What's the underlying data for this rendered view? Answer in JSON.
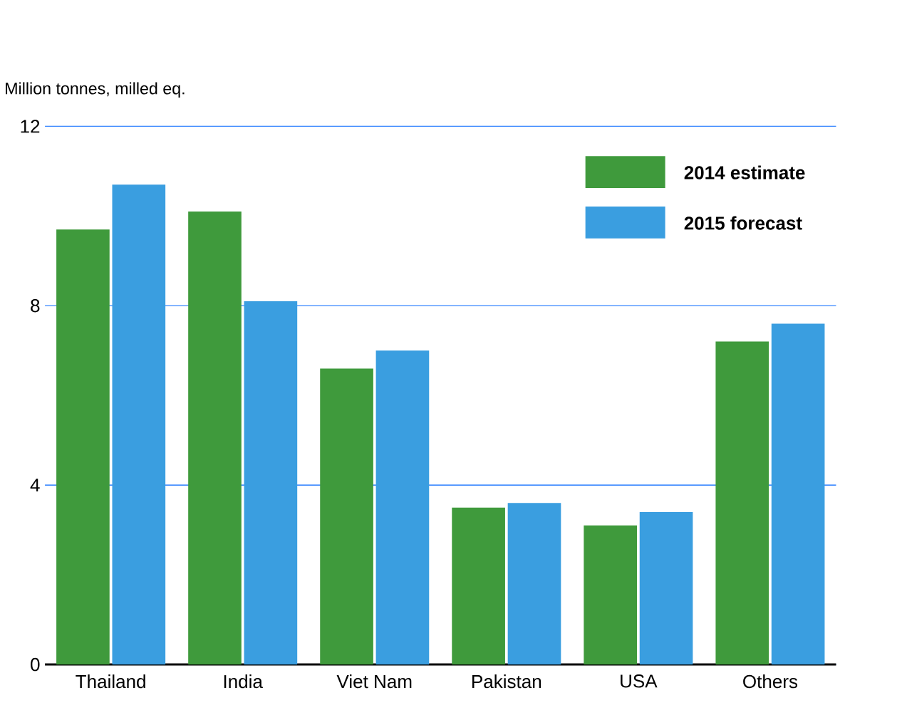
{
  "chart_data": {
    "type": "bar",
    "ylabel": "Million tonnes, milled eq.",
    "categories": [
      "Thailand",
      "India",
      "Viet Nam",
      "Pakistan",
      "USA",
      "Others"
    ],
    "series": [
      {
        "name": "**2014 estimate**",
        "color": "#3f9a3c",
        "values": [
          9.7,
          10.1,
          6.6,
          3.5,
          3.1,
          7.2
        ]
      },
      {
        "name": "**2015 forecast**",
        "color": "#3a9ee0",
        "values": [
          10.7,
          8.1,
          7.0,
          3.6,
          3.4,
          7.6
        ]
      }
    ],
    "ylim": [
      0,
      12
    ],
    "yticks": [
      0,
      4,
      8,
      12
    ],
    "grid": "y",
    "legend": "top right"
  }
}
